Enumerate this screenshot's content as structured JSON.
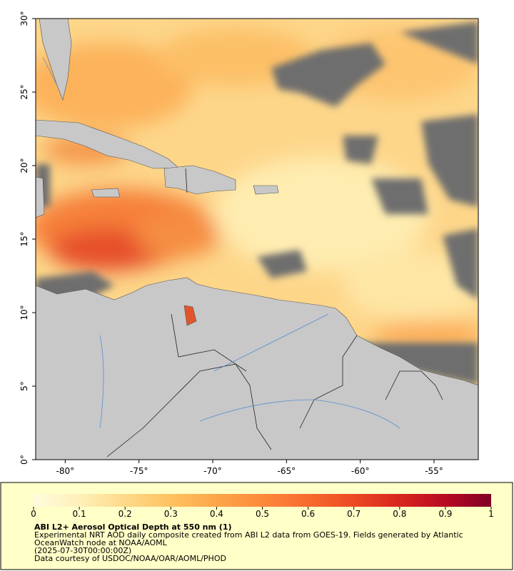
{
  "map": {
    "xlim": [
      -82,
      -52
    ],
    "ylim": [
      0,
      30
    ],
    "xticks": [
      {
        "value": -80,
        "label": "-80°"
      },
      {
        "value": -75,
        "label": "-75°"
      },
      {
        "value": -70,
        "label": "-70°"
      },
      {
        "value": -65,
        "label": "-65°"
      },
      {
        "value": -60,
        "label": "-60°"
      },
      {
        "value": -55,
        "label": "-55°"
      }
    ],
    "yticks": [
      {
        "value": 0,
        "label": "0°"
      },
      {
        "value": 5,
        "label": "5°"
      },
      {
        "value": 10,
        "label": "10°"
      },
      {
        "value": 15,
        "label": "15°"
      },
      {
        "value": 20,
        "label": "20°"
      },
      {
        "value": 25,
        "label": "25°"
      },
      {
        "value": 30,
        "label": "30°"
      }
    ]
  },
  "colorbar": {
    "lim": [
      0,
      1
    ],
    "ticks": [
      0,
      0.1,
      0.2,
      0.3,
      0.4,
      0.5,
      0.6,
      0.7,
      0.8,
      0.9,
      1
    ],
    "colormap": [
      "#fffbe0",
      "#fff0b8",
      "#fed98a",
      "#fec260",
      "#fda548",
      "#fc8a3c",
      "#f86a2e",
      "#ec4a24",
      "#d7261e",
      "#b70a22",
      "#800026"
    ]
  },
  "caption": {
    "title": "ABI L2+ Aerosol Optical Depth at 550 nm (1)",
    "description": "Experimental NRT AOD daily composite created from ABI L2 data from GOES-19. Fields generated by Atlantic OceanWatch node at NOAA/AOML",
    "time": "(2025-07-30T00:00:00Z)",
    "credit": "Data courtesy of USDOC/NOAA/OAR/AOML/PHOD"
  }
}
